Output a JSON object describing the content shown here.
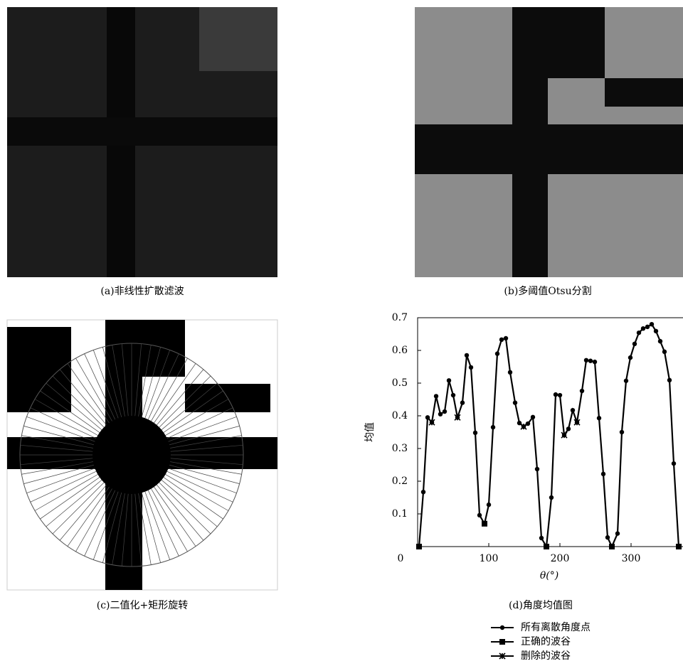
{
  "panels": [
    {
      "caption": "(a)非线性扩散滤波"
    },
    {
      "caption": "(b)多阈值Otsu分割"
    },
    {
      "caption": "(c)二值化+矩形旋转"
    }
  ],
  "chart_data": {
    "type": "line",
    "title": "(d)角度均值图",
    "x_label": "θ(°)",
    "y_label": "均值",
    "xlim": [
      0,
      373
    ],
    "ylim": [
      0,
      0.7
    ],
    "xticks": [
      0,
      100,
      200,
      300
    ],
    "yticks": [
      0.1,
      0.2,
      0.3,
      0.4,
      0.5,
      0.6,
      0.7
    ],
    "series": [
      {
        "name": "所有离散角度点",
        "marker": "circle",
        "color": "#000000",
        "x": [
          2,
          8,
          14,
          20,
          26,
          32,
          38,
          44,
          50,
          56,
          63,
          69,
          75,
          81,
          87,
          94,
          100,
          106,
          112,
          118,
          124,
          130,
          137,
          143,
          149,
          155,
          162,
          168,
          174,
          181,
          188,
          194,
          200,
          206,
          212,
          218,
          224,
          231,
          237,
          243,
          249,
          255,
          261,
          267,
          273,
          281,
          287,
          293,
          299,
          305,
          311,
          317,
          323,
          329,
          335,
          341,
          347,
          354,
          360,
          367
        ],
        "values": [
          0,
          0.167,
          0.395,
          0.38,
          0.46,
          0.405,
          0.413,
          0.508,
          0.463,
          0.395,
          0.44,
          0.585,
          0.548,
          0.348,
          0.096,
          0.07,
          0.128,
          0.365,
          0.59,
          0.633,
          0.637,
          0.533,
          0.44,
          0.378,
          0.367,
          0.376,
          0.396,
          0.237,
          0.026,
          0,
          0.15,
          0.465,
          0.463,
          0.341,
          0.36,
          0.417,
          0.38,
          0.476,
          0.57,
          0.568,
          0.565,
          0.393,
          0.222,
          0.028,
          0,
          0.04,
          0.35,
          0.507,
          0.578,
          0.62,
          0.654,
          0.667,
          0.672,
          0.68,
          0.659,
          0.628,
          0.596,
          0.509,
          0.254,
          0
        ]
      },
      {
        "name": "正确的波谷",
        "marker": "square",
        "color": "#000000",
        "x": [
          2,
          94,
          181,
          273,
          367
        ],
        "values": [
          0,
          0.07,
          0,
          0,
          0
        ]
      },
      {
        "name": "删除的波谷",
        "marker": "cross",
        "color": "#000000",
        "x": [
          20,
          56,
          149,
          206,
          224
        ],
        "values": [
          0.38,
          0.395,
          0.367,
          0.341,
          0.38
        ]
      }
    ]
  }
}
